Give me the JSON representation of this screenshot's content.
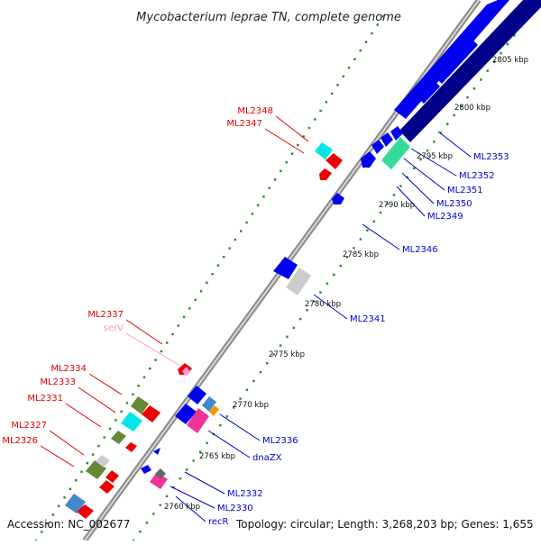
{
  "title": "Mycobacterium leprae TN, complete genome",
  "footer": {
    "accession": "Accession: NC_002677",
    "topology": "Topology: circular; Length: 3,268,203 bp; Genes: 1,655"
  },
  "colors": {
    "background": "#ffffff",
    "backbone": "#8a8a8a",
    "tick_dots": "#228b22",
    "left_labels": "#e00000",
    "right_labels": "#0000cc",
    "trna_label": "#ff99cc",
    "gene_blue": "#0000ee",
    "gene_navy": "#000088",
    "gene_red": "#ee0000",
    "gene_cyan": "#00e5e5",
    "gene_olive": "#668833",
    "gene_teal": "#33dd99",
    "gene_grey": "#cccccc",
    "gene_magenta": "#ee3399",
    "gene_orange": "#ee9900",
    "gene_steelblue": "#4488cc"
  },
  "ticks": [
    "2760 kbp",
    "2765 kbp",
    "2770 kbp",
    "2775 kbp",
    "2780 kbp",
    "2785 kbp",
    "2790 kbp",
    "2795 kbp",
    "2800 kbp",
    "2805 kbp"
  ],
  "left_labels": [
    "ML2348",
    "ML2347",
    "ML2337",
    "serV",
    "ML2334",
    "ML2333",
    "ML2331",
    "ML2327",
    "ML2326"
  ],
  "right_labels": [
    "ML2353",
    "ML2352",
    "ML2351",
    "ML2350",
    "ML2349",
    "ML2346",
    "ML2341",
    "ML2336",
    "dnaZX",
    "ML2332",
    "ML2330",
    "recR"
  ]
}
